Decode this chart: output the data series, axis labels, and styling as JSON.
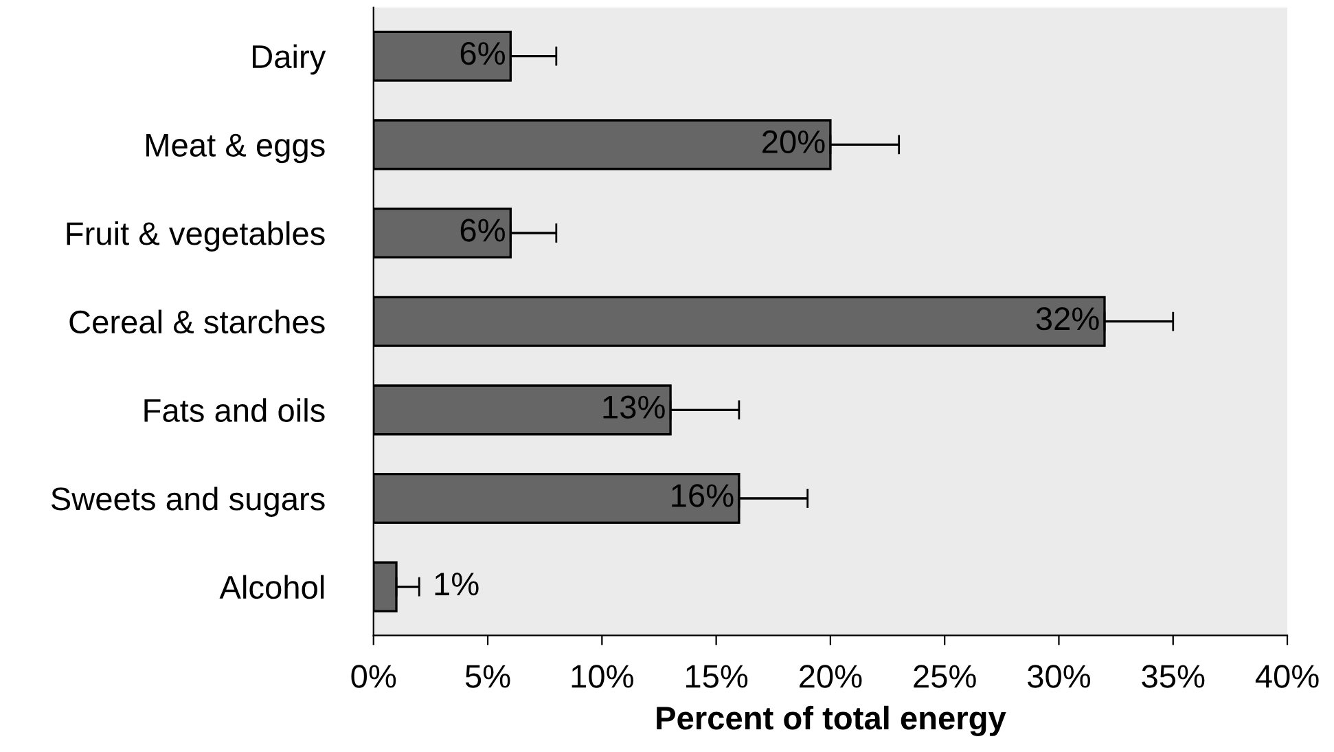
{
  "chart_data": {
    "type": "bar",
    "orientation": "horizontal",
    "xlabel": "Percent of total energy",
    "categories": [
      "Dairy",
      "Meat & eggs",
      "Fruit & vegetables",
      "Cereal & starches",
      "Fats and oils",
      "Sweets and sugars",
      "Alcohol"
    ],
    "values": [
      6,
      20,
      6,
      32,
      13,
      16,
      1
    ],
    "value_labels": [
      "6%",
      "20%",
      "6%",
      "32%",
      "13%",
      "16%",
      "1%"
    ],
    "errors": [
      [
        6,
        8
      ],
      [
        20,
        23
      ],
      [
        6,
        8
      ],
      [
        32,
        35
      ],
      [
        13,
        16
      ],
      [
        16,
        19
      ],
      [
        1,
        2
      ]
    ],
    "color": "#666666",
    "xlim": [
      0,
      40
    ],
    "xticks": [
      {
        "value": 0,
        "label": "0%"
      },
      {
        "value": 5,
        "label": "5%"
      },
      {
        "value": 10,
        "label": "10%"
      },
      {
        "value": 15,
        "label": "15%"
      },
      {
        "value": 20,
        "label": "20%"
      },
      {
        "value": 25,
        "label": "25%"
      },
      {
        "value": 30,
        "label": "30%"
      },
      {
        "value": 35,
        "label": "35%"
      },
      {
        "value": 40,
        "label": "40%"
      }
    ],
    "grid": false,
    "legend": false
  }
}
